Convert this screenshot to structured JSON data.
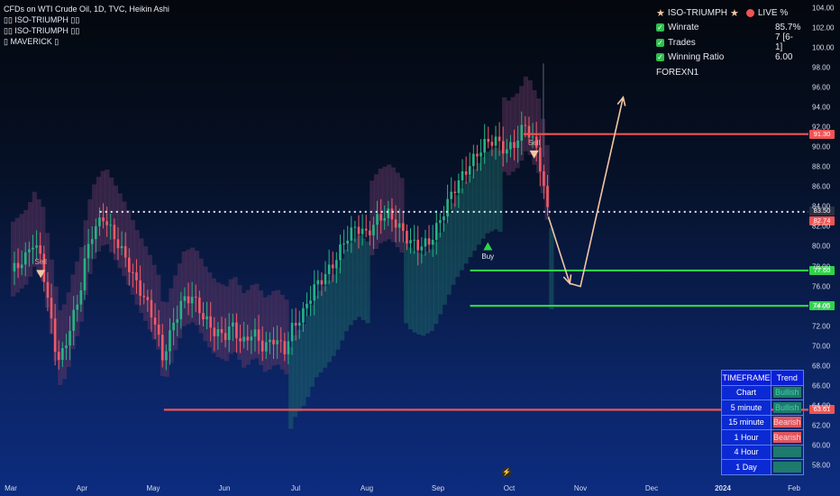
{
  "header": {
    "title": "CFDs on WTI Crude Oil, 1D, TVC, Heikin Ashi",
    "indicators": [
      "ISO-TRIUMPH",
      "ISO-TRIUMPH",
      "MAVERICK"
    ]
  },
  "stats_panel": {
    "name": "ISO-TRIUMPH",
    "live_label": "LIVE %",
    "rows": [
      {
        "label": "Winrate",
        "value": "85.7%"
      },
      {
        "label": "Trades",
        "value": "7 [6-1]"
      },
      {
        "label": "Winning Ratio",
        "value": "6.00"
      }
    ],
    "brand": "FOREXN1"
  },
  "timeframe_table": {
    "headers": [
      "TIMEFRAME",
      "Trend"
    ],
    "rows": [
      {
        "tf": "Chart",
        "trend": "Bullish",
        "state": "bull"
      },
      {
        "tf": "5 minute",
        "trend": "Bullish",
        "state": "bull"
      },
      {
        "tf": "15 minute",
        "trend": "Bearish",
        "state": "bear"
      },
      {
        "tf": "1 Hour",
        "trend": "Bearish",
        "state": "bear"
      },
      {
        "tf": "4 Hour",
        "trend": "",
        "state": "bull"
      },
      {
        "tf": "1 Day",
        "trend": "",
        "state": "bull"
      }
    ]
  },
  "signals": [
    {
      "label": "Sell",
      "type": "sell",
      "month_index": 0.42,
      "price": 77.2
    },
    {
      "label": "Buy",
      "type": "buy",
      "month_index": 6.7,
      "price": 80.0
    },
    {
      "label": "Sell",
      "type": "sell",
      "month_index": 7.35,
      "price": 89.2
    }
  ],
  "level_lines": [
    {
      "value": 91.3,
      "label": "91.30",
      "color": "#f05454",
      "start_month": 7.2
    },
    {
      "value": 77.6,
      "label": "77.60",
      "color": "#2fd24a",
      "start_month": 6.45
    },
    {
      "value": 74.05,
      "label": "74.05",
      "color": "#2fd24a",
      "start_month": 6.45
    },
    {
      "value": 63.61,
      "label": "63.61",
      "color": "#f05454",
      "start_month": 2.15
    }
  ],
  "price_tags": [
    {
      "value": 83.5,
      "label": "83.50",
      "bg": "#2a3142"
    },
    {
      "value": 82.74,
      "label": "82.74",
      "bg": "#f05454"
    }
  ],
  "colors": {
    "up": "#27b383",
    "down": "#f05a66",
    "bull_cloud": "#1f6f6a",
    "bear_cloud": "#6a3a66"
  },
  "chart_data": {
    "type": "candlestick",
    "title": "CFDs on WTI Crude Oil, 1D, TVC, Heikin Ashi",
    "x_ticks": [
      "Mar",
      "Apr",
      "May",
      "Jun",
      "Jul",
      "Aug",
      "Sep",
      "Oct",
      "Nov",
      "Dec",
      "2024",
      "Feb"
    ],
    "y_ticks": [
      58,
      60,
      62,
      64,
      66,
      68,
      70,
      72,
      74,
      76,
      78,
      80,
      82,
      84,
      86,
      88,
      90,
      92,
      94,
      96,
      98,
      100,
      102,
      104
    ],
    "y_tick_labels": [
      "58.00",
      "60.00",
      "62.00",
      "64.00",
      "66.00",
      "68.00",
      "70.00",
      "72.00",
      "74.00",
      "76.00",
      "78.00",
      "80.00",
      "82.00",
      "84.00",
      "86.00",
      "88.00",
      "90.00",
      "92.00",
      "94.00",
      "96.00",
      "98.00",
      "100.00",
      "102.00",
      "104.00"
    ],
    "ylim": [
      57,
      104.5
    ],
    "dotted_level": 83.5,
    "price_path": [
      [
        0.0,
        77.5
      ],
      [
        0.2,
        78.8
      ],
      [
        0.3,
        80.5
      ],
      [
        0.42,
        79.0
      ],
      [
        0.5,
        75.5
      ],
      [
        0.6,
        71.0
      ],
      [
        0.65,
        68.5
      ],
      [
        0.75,
        69.5
      ],
      [
        0.85,
        72.5
      ],
      [
        0.95,
        74.5
      ],
      [
        1.05,
        79.0
      ],
      [
        1.15,
        81.5
      ],
      [
        1.3,
        83.0
      ],
      [
        1.45,
        81.0
      ],
      [
        1.6,
        79.0
      ],
      [
        1.75,
        76.5
      ],
      [
        1.9,
        74.5
      ],
      [
        2.05,
        72.0
      ],
      [
        2.12,
        68.5
      ],
      [
        2.25,
        71.5
      ],
      [
        2.4,
        74.5
      ],
      [
        2.55,
        75.0
      ],
      [
        2.7,
        73.0
      ],
      [
        2.85,
        71.5
      ],
      [
        3.0,
        71.0
      ],
      [
        3.1,
        72.2
      ],
      [
        3.25,
        70.2
      ],
      [
        3.4,
        71.5
      ],
      [
        3.55,
        69.8
      ],
      [
        3.7,
        70.8
      ],
      [
        3.85,
        69.6
      ],
      [
        3.95,
        71.8
      ],
      [
        4.1,
        73.2
      ],
      [
        4.25,
        75.8
      ],
      [
        4.4,
        77.0
      ],
      [
        4.55,
        78.5
      ],
      [
        4.7,
        80.8
      ],
      [
        4.85,
        82.0
      ],
      [
        5.0,
        81.2
      ],
      [
        5.15,
        82.8
      ],
      [
        5.3,
        83.3
      ],
      [
        5.45,
        82.0
      ],
      [
        5.6,
        80.5
      ],
      [
        5.75,
        80.0
      ],
      [
        5.9,
        80.6
      ],
      [
        6.05,
        83.0
      ],
      [
        6.2,
        85.5
      ],
      [
        6.35,
        87.2
      ],
      [
        6.5,
        88.8
      ],
      [
        6.65,
        90.3
      ],
      [
        6.8,
        90.8
      ],
      [
        6.95,
        89.6
      ],
      [
        7.1,
        90.5
      ],
      [
        7.22,
        92.4
      ],
      [
        7.3,
        91.0
      ],
      [
        7.4,
        89.6
      ],
      [
        7.5,
        85.2
      ],
      [
        7.56,
        82.7
      ]
    ],
    "projection_arrow": {
      "points": [
        [
          7.55,
          83.0
        ],
        [
          7.85,
          76.3
        ],
        [
          8.0,
          76.0
        ],
        [
          8.6,
          95.0
        ]
      ],
      "color": "#f1c7a6"
    }
  },
  "footer_icon": "lightning-icon"
}
